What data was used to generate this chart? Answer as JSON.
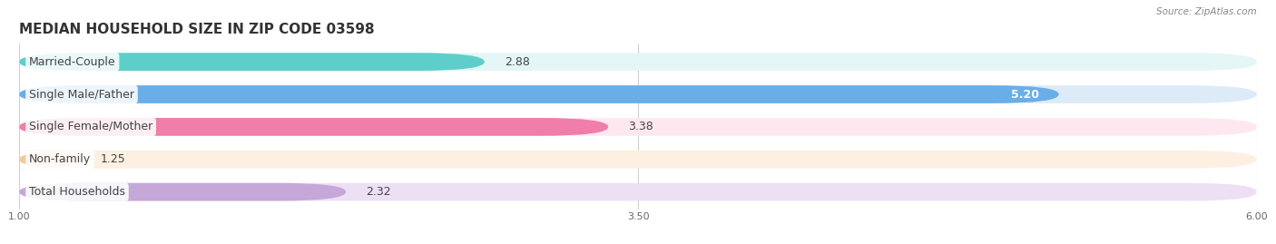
{
  "title": "MEDIAN HOUSEHOLD SIZE IN ZIP CODE 03598",
  "source": "Source: ZipAtlas.com",
  "categories": [
    "Married-Couple",
    "Single Male/Father",
    "Single Female/Mother",
    "Non-family",
    "Total Households"
  ],
  "values": [
    2.88,
    5.2,
    3.38,
    1.25,
    2.32
  ],
  "bar_colors": [
    "#5ececa",
    "#6aaee8",
    "#f07daa",
    "#f5c89a",
    "#c5a8d8"
  ],
  "bar_bg_colors": [
    "#e4f6f6",
    "#ddeaf8",
    "#fde8f2",
    "#fdf0e0",
    "#ede0f5"
  ],
  "xlim_min": 1.0,
  "xlim_max": 6.0,
  "xticks": [
    1.0,
    3.5,
    6.0
  ],
  "xtick_labels": [
    "1.00",
    "3.50",
    "6.00"
  ],
  "title_fontsize": 11,
  "label_fontsize": 9,
  "value_fontsize": 9,
  "figure_bg": "#ffffff",
  "bar_row_bg": "#f0f0f4",
  "text_color": "#444444",
  "source_color": "#888888"
}
